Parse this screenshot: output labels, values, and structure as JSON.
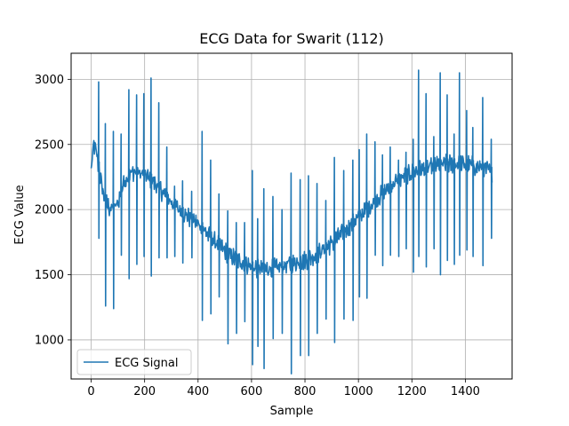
{
  "chart_data": {
    "type": "line",
    "title": "ECG Data for Swarit (112)",
    "xlabel": "Sample",
    "ylabel": "ECG Value",
    "xlim": [
      -75,
      1575
    ],
    "ylim": [
      700,
      3200
    ],
    "xticks": [
      0,
      200,
      400,
      600,
      800,
      1000,
      1200,
      1400
    ],
    "yticks": [
      1000,
      1500,
      2000,
      2500,
      3000
    ],
    "grid": true,
    "legend_position": "lower-left",
    "series": [
      {
        "name": "ECG Signal",
        "color": "#1f77b4",
        "baseline": [
          [
            0,
            2300
          ],
          [
            10,
            2500
          ],
          [
            20,
            2430
          ],
          [
            30,
            2300
          ],
          [
            40,
            2180
          ],
          [
            50,
            2080
          ],
          [
            60,
            2040
          ],
          [
            70,
            2010
          ],
          [
            80,
            2000
          ],
          [
            90,
            2020
          ],
          [
            100,
            2050
          ],
          [
            110,
            2120
          ],
          [
            120,
            2200
          ],
          [
            140,
            2270
          ],
          [
            160,
            2290
          ],
          [
            180,
            2280
          ],
          [
            200,
            2260
          ],
          [
            220,
            2240
          ],
          [
            240,
            2200
          ],
          [
            260,
            2150
          ],
          [
            280,
            2100
          ],
          [
            300,
            2060
          ],
          [
            320,
            2020
          ],
          [
            340,
            1980
          ],
          [
            360,
            1950
          ],
          [
            380,
            1920
          ],
          [
            400,
            1890
          ],
          [
            420,
            1850
          ],
          [
            440,
            1800
          ],
          [
            460,
            1760
          ],
          [
            480,
            1720
          ],
          [
            500,
            1680
          ],
          [
            520,
            1650
          ],
          [
            540,
            1620
          ],
          [
            560,
            1600
          ],
          [
            580,
            1580
          ],
          [
            600,
            1560
          ],
          [
            620,
            1550
          ],
          [
            640,
            1545
          ],
          [
            660,
            1545
          ],
          [
            680,
            1550
          ],
          [
            700,
            1555
          ],
          [
            720,
            1565
          ],
          [
            740,
            1580
          ],
          [
            760,
            1590
          ],
          [
            780,
            1600
          ],
          [
            800,
            1610
          ],
          [
            820,
            1630
          ],
          [
            840,
            1650
          ],
          [
            860,
            1680
          ],
          [
            880,
            1710
          ],
          [
            900,
            1740
          ],
          [
            920,
            1780
          ],
          [
            940,
            1820
          ],
          [
            960,
            1860
          ],
          [
            980,
            1900
          ],
          [
            1000,
            1940
          ],
          [
            1020,
            1980
          ],
          [
            1040,
            2020
          ],
          [
            1060,
            2060
          ],
          [
            1080,
            2100
          ],
          [
            1100,
            2140
          ],
          [
            1120,
            2180
          ],
          [
            1140,
            2210
          ],
          [
            1160,
            2240
          ],
          [
            1180,
            2260
          ],
          [
            1200,
            2280
          ],
          [
            1220,
            2300
          ],
          [
            1240,
            2310
          ],
          [
            1260,
            2320
          ],
          [
            1280,
            2330
          ],
          [
            1300,
            2340
          ],
          [
            1320,
            2345
          ],
          [
            1340,
            2350
          ],
          [
            1360,
            2350
          ],
          [
            1380,
            2350
          ],
          [
            1400,
            2345
          ],
          [
            1420,
            2340
          ],
          [
            1440,
            2330
          ],
          [
            1460,
            2320
          ],
          [
            1480,
            2310
          ],
          [
            1500,
            2280
          ]
        ],
        "spikes": [
          [
            28,
            2980,
            1780
          ],
          [
            53,
            2660,
            1260
          ],
          [
            83,
            2600,
            1240
          ],
          [
            112,
            2580,
            1650
          ],
          [
            141,
            2920,
            1470
          ],
          [
            170,
            2880,
            1580
          ],
          [
            197,
            2890,
            1640
          ],
          [
            224,
            3010,
            1490
          ],
          [
            253,
            2820,
            1630
          ],
          [
            283,
            2480,
            1630
          ],
          [
            312,
            2180,
            1640
          ],
          [
            342,
            2220,
            1590
          ],
          [
            376,
            2140,
            1630
          ],
          [
            415,
            2600,
            1150
          ],
          [
            447,
            2380,
            1200
          ],
          [
            478,
            2120,
            1330
          ],
          [
            511,
            1990,
            970
          ],
          [
            543,
            1900,
            1050
          ],
          [
            574,
            1900,
            1140
          ],
          [
            603,
            2300,
            810
          ],
          [
            623,
            1930,
            950
          ],
          [
            646,
            2160,
            780
          ],
          [
            680,
            2100,
            1010
          ],
          [
            714,
            2000,
            1050
          ],
          [
            748,
            2280,
            740
          ],
          [
            782,
            2230,
            880
          ],
          [
            813,
            2260,
            880
          ],
          [
            845,
            2200,
            1050
          ],
          [
            878,
            2070,
            1160
          ],
          [
            910,
            2400,
            980
          ],
          [
            945,
            2300,
            1160
          ],
          [
            979,
            2380,
            1150
          ],
          [
            1003,
            2460,
            1330
          ],
          [
            1031,
            2580,
            1320
          ],
          [
            1062,
            2520,
            1650
          ],
          [
            1090,
            2420,
            1570
          ],
          [
            1119,
            2480,
            1650
          ],
          [
            1150,
            2380,
            1640
          ],
          [
            1178,
            2440,
            1700
          ],
          [
            1205,
            2540,
            1520
          ],
          [
            1225,
            3070,
            1640
          ],
          [
            1253,
            2890,
            1560
          ],
          [
            1282,
            2560,
            1700
          ],
          [
            1306,
            3050,
            1500
          ],
          [
            1332,
            2880,
            1610
          ],
          [
            1358,
            2580,
            1580
          ],
          [
            1378,
            3050,
            1650
          ],
          [
            1405,
            2760,
            1690
          ],
          [
            1428,
            2630,
            1640
          ],
          [
            1465,
            2860,
            1570
          ],
          [
            1497,
            2540,
            1780
          ]
        ]
      }
    ]
  }
}
